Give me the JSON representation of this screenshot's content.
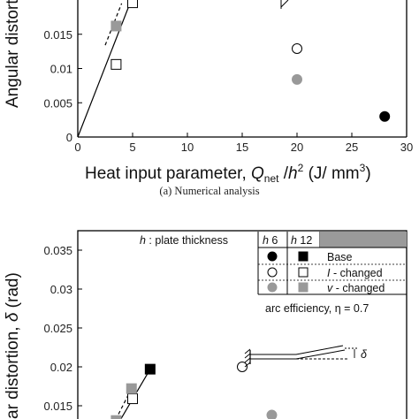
{
  "chart_data": [
    {
      "type": "scatter",
      "panel": "top",
      "ylabel_visible": "Angular distorto",
      "xlabel_main": "Heat input parameter, ",
      "xlabel_sym": "Q",
      "xlabel_sub": "net",
      "xlabel_mid": " /",
      "xlabel_h": "h",
      "xlabel_exp": "2",
      "xlabel_unit": " (J/ mm",
      "xlabel_unit_exp": "3",
      "xlabel_close": ")",
      "caption": "(a) Numerical analysis",
      "xlim": [
        0,
        30
      ],
      "ylim": [
        0,
        0.02
      ],
      "x_ticks": [
        "0",
        "5",
        "10",
        "15",
        "20",
        "25",
        "30"
      ],
      "y_ticks": [
        "0",
        "0.005",
        "0.01",
        "0.015"
      ],
      "points": [
        {
          "x": 28,
          "y": 0.003,
          "marker": "circle",
          "fill": "#000000"
        },
        {
          "x": 20,
          "y": 0.0129,
          "marker": "circle",
          "fill": "#ffffff"
        },
        {
          "x": 20,
          "y": 0.0084,
          "marker": "circle",
          "fill": "#999999"
        },
        {
          "x": 3.5,
          "y": 0.0106,
          "marker": "square",
          "fill": "#ffffff"
        },
        {
          "x": 3.5,
          "y": 0.0162,
          "marker": "square",
          "fill": "#999999"
        },
        {
          "x": 5,
          "y": 0.0196,
          "marker": "square",
          "fill": "#ffffff"
        }
      ],
      "lines": [
        {
          "style": "solid",
          "from": [
            0,
            0
          ],
          "to": [
            5,
            0.0205
          ]
        },
        {
          "style": "dashed",
          "from": [
            2.5,
            0.0134
          ],
          "to": [
            4.0,
            0.0195
          ]
        }
      ]
    },
    {
      "type": "scatter",
      "panel": "bottom",
      "ylabel_visible": "ar distortion, ",
      "ylabel_delta": "δ",
      "ylabel_unit": " (rad)",
      "xlim": [
        0,
        30
      ],
      "ylim": [
        0.0125,
        0.0375
      ],
      "y_ticks": [
        "0.015",
        "0.02",
        "0.025",
        "0.03",
        "0.035"
      ],
      "y_tick_values": [
        0.015,
        0.02,
        0.025,
        0.03,
        0.035
      ],
      "points": [
        {
          "x": 6.6,
          "y": 0.0197,
          "marker": "square",
          "fill": "#000000"
        },
        {
          "x": 15.0,
          "y": 0.02,
          "marker": "circle",
          "fill": "#ffffff"
        },
        {
          "x": 17.7,
          "y": 0.0138,
          "marker": "circle",
          "fill": "#999999"
        },
        {
          "x": 5.0,
          "y": 0.0159,
          "marker": "square",
          "fill": "#ffffff"
        },
        {
          "x": 4.9,
          "y": 0.0172,
          "marker": "square",
          "fill": "#999999"
        },
        {
          "x": 3.5,
          "y": 0.0131,
          "marker": "square",
          "fill": "#999999"
        }
      ],
      "lines": [
        {
          "style": "solid",
          "from": [
            3.6,
            0.0125
          ],
          "to": [
            6.6,
            0.0197
          ]
        },
        {
          "style": "dashed",
          "from": [
            3.2,
            0.0125
          ],
          "to": [
            4.9,
            0.0172
          ]
        }
      ],
      "legend": {
        "title_sym": "h",
        "title_text": " : plate thickness",
        "col1": "h",
        "col1_val": " 6",
        "col2": "h",
        "col2_val": " 12",
        "rows": [
          {
            "label": "Base",
            "m1": "circle",
            "f1": "#000000",
            "m2": "square",
            "f2": "#000000"
          },
          {
            "label_sym": "I",
            "label": " - changed",
            "m1": "circle",
            "f1": "#ffffff",
            "m2": "square",
            "f2": "#ffffff"
          },
          {
            "label_sym": "v",
            "label": " - changed",
            "m1": "circle",
            "f1": "#999999",
            "m2": "square",
            "f2": "#999999"
          }
        ],
        "footnote": "arc efficiency, η = 0.7"
      },
      "inset_label": "δ"
    }
  ]
}
